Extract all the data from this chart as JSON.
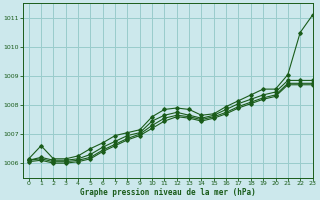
{
  "title": "Graphe pression niveau de la mer (hPa)",
  "background_color": "#cce8ec",
  "grid_color": "#99cccc",
  "line_color": "#1a5c1a",
  "xlim": [
    -0.5,
    23
  ],
  "ylim": [
    1005.5,
    1011.5
  ],
  "xticks": [
    0,
    1,
    2,
    3,
    4,
    5,
    6,
    7,
    8,
    9,
    10,
    11,
    12,
    13,
    14,
    15,
    16,
    17,
    18,
    19,
    20,
    21,
    22,
    23
  ],
  "yticks": [
    1006,
    1007,
    1008,
    1009,
    1010,
    1011
  ],
  "line_top": [
    1006.15,
    1006.6,
    1006.15,
    1006.15,
    1006.25,
    1006.5,
    1006.7,
    1006.95,
    1007.05,
    1007.15,
    1007.6,
    1007.85,
    1007.9,
    1007.85,
    1007.65,
    1007.7,
    1007.95,
    1008.15,
    1008.35,
    1008.55,
    1008.55,
    1009.05,
    1010.5,
    1011.1
  ],
  "line_mid1": [
    1006.1,
    1006.2,
    1006.1,
    1006.1,
    1006.15,
    1006.3,
    1006.55,
    1006.75,
    1006.95,
    1007.05,
    1007.45,
    1007.65,
    1007.75,
    1007.65,
    1007.55,
    1007.65,
    1007.85,
    1008.05,
    1008.2,
    1008.35,
    1008.45,
    1008.85,
    1008.85,
    1008.85
  ],
  "line_mid2": [
    1006.1,
    1006.15,
    1006.05,
    1006.05,
    1006.1,
    1006.2,
    1006.45,
    1006.65,
    1006.85,
    1007.0,
    1007.3,
    1007.55,
    1007.65,
    1007.6,
    1007.5,
    1007.6,
    1007.75,
    1007.95,
    1008.1,
    1008.25,
    1008.35,
    1008.75,
    1008.75,
    1008.75
  ],
  "line_bot": [
    1006.05,
    1006.1,
    1006.0,
    1006.0,
    1006.05,
    1006.15,
    1006.4,
    1006.6,
    1006.8,
    1006.95,
    1007.2,
    1007.45,
    1007.6,
    1007.55,
    1007.45,
    1007.55,
    1007.7,
    1007.9,
    1008.05,
    1008.2,
    1008.3,
    1008.7,
    1008.7,
    1008.7
  ]
}
